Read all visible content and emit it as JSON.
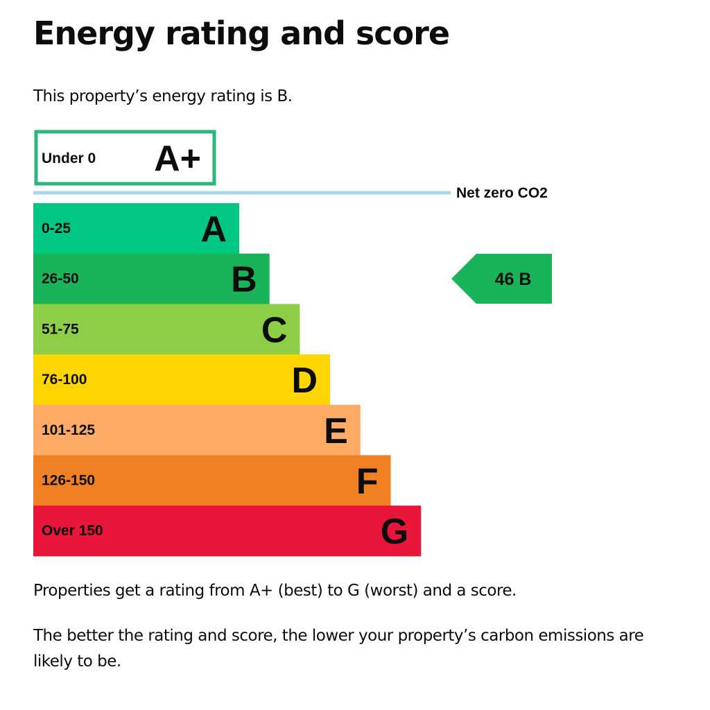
{
  "page": {
    "title": "Energy rating and score",
    "intro": "This property’s energy rating is B.",
    "explanation_1": "Properties get a rating from A+ (best) to G (worst) and a score.",
    "explanation_2": "The better the rating and score, the lower your property’s carbon emissions are likely to be."
  },
  "chart_data": {
    "type": "bar",
    "title": "",
    "top_band": {
      "letter": "A+",
      "range": "Under 0",
      "border_color": "#2db57a",
      "fill_color": "#ffffff"
    },
    "net_zero": {
      "label": "Net zero CO2",
      "line_color": "#a9d5e9"
    },
    "bands": [
      {
        "letter": "A",
        "range": "0-25",
        "color": "#00c781"
      },
      {
        "letter": "B",
        "range": "26-50",
        "color": "#19b459"
      },
      {
        "letter": "C",
        "range": "51-75",
        "color": "#8dce46"
      },
      {
        "letter": "D",
        "range": "76-100",
        "color": "#ffd500"
      },
      {
        "letter": "E",
        "range": "101-125",
        "color": "#fcaa65"
      },
      {
        "letter": "F",
        "range": "126-150",
        "color": "#ef8023"
      },
      {
        "letter": "G",
        "range": "Over 150",
        "color": "#e9153b"
      }
    ],
    "current": {
      "score": 46,
      "rating": "B",
      "label": "46 B",
      "color": "#19b459"
    }
  }
}
